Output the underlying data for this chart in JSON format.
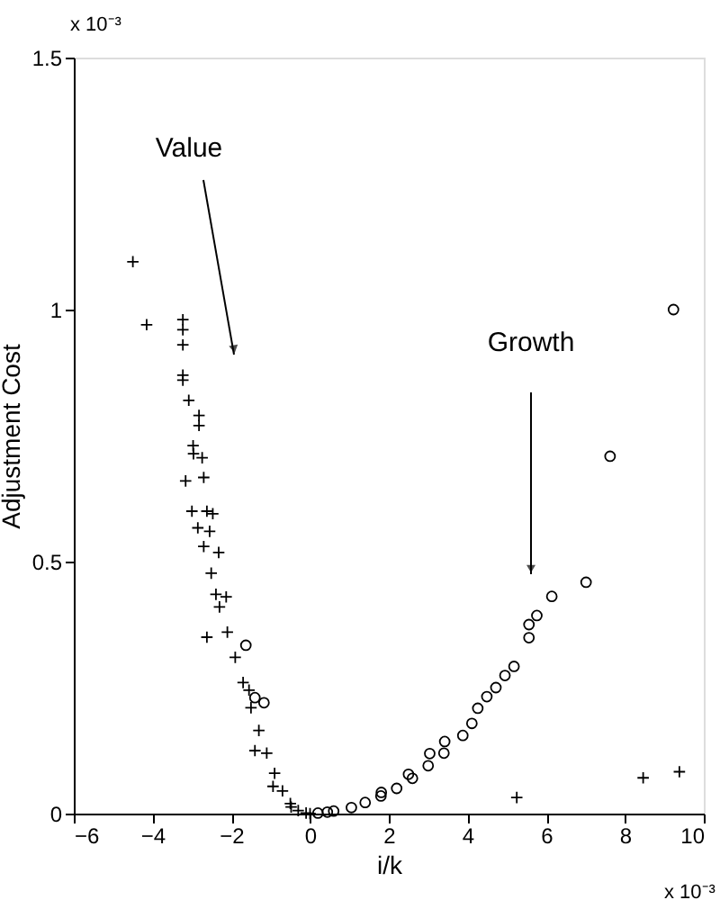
{
  "chart_data": {
    "type": "scatter",
    "xlabel": "i/k",
    "ylabel": "Adjustment Cost",
    "xlim": [
      -6,
      10
    ],
    "xticks": [
      -6,
      -4,
      -2,
      0,
      2,
      4,
      6,
      8,
      10
    ],
    "ylim": [
      0,
      1.5
    ],
    "yticks": [
      0,
      0.5,
      1,
      1.5
    ],
    "grid": false,
    "annotations": [
      "Value",
      "Growth",
      "x 10⁻³",
      "x 10⁻³"
    ],
    "series": [
      {
        "color": "#000000",
        "marker": "cross",
        "x": [
          -4.5,
          -4.15,
          -3.23,
          -3.23,
          -3.23,
          -3.23,
          -3.23,
          -3.08,
          -2.82,
          -2.82,
          -2.97,
          -2.96,
          -2.74,
          -3.16,
          -2.7,
          -3.0,
          -2.62,
          -2.47,
          -2.85,
          -2.55,
          -2.7,
          -2.32,
          -2.51,
          -2.39,
          -2.13,
          -2.62,
          -2.3,
          -2.1,
          -1.9,
          -1.7,
          -1.55,
          -1.5,
          -1.4,
          -1.3,
          -1.1,
          -0.94,
          -0.9,
          -0.7,
          -0.5,
          -0.48,
          -0.3,
          -0.1,
          0,
          5.25,
          8.46,
          9.38
        ],
        "values": [
          1.095,
          0.97,
          0.98,
          0.96,
          0.93,
          0.87,
          0.86,
          0.82,
          0.79,
          0.77,
          0.73,
          0.714,
          0.706,
          0.66,
          0.667,
          0.6,
          0.6,
          0.595,
          0.567,
          0.56,
          0.53,
          0.518,
          0.477,
          0.435,
          0.43,
          0.35,
          0.41,
          0.36,
          0.31,
          0.26,
          0.245,
          0.21,
          0.125,
          0.165,
          0.12,
          0.054,
          0.08,
          0.045,
          0.02,
          0.013,
          0.006,
          0.001,
          0,
          0.032,
          0.071,
          0.083
        ]
      },
      {
        "color": "#000000",
        "marker": "circle",
        "x": [
          9.23,
          7.62,
          7.01,
          6.14,
          5.76,
          5.56,
          5.56,
          5.18,
          4.95,
          4.72,
          4.49,
          4.26,
          4.11,
          3.88,
          3.42,
          3.4,
          3.04,
          3.0,
          2.6,
          2.5,
          2.2,
          1.81,
          1.8,
          1.4,
          1.05,
          0.6,
          0.44,
          0.2,
          -1.63,
          -1.17,
          -1.4
        ],
        "values": [
          1.0,
          0.709,
          0.459,
          0.431,
          0.393,
          0.375,
          0.349,
          0.292,
          0.274,
          0.25,
          0.232,
          0.209,
          0.179,
          0.155,
          0.143,
          0.12,
          0.119,
          0.095,
          0.07,
          0.078,
          0.05,
          0.042,
          0.035,
          0.022,
          0.012,
          0.005,
          0.003,
          0.001,
          0.334,
          0.22,
          0.23
        ]
      }
    ]
  }
}
